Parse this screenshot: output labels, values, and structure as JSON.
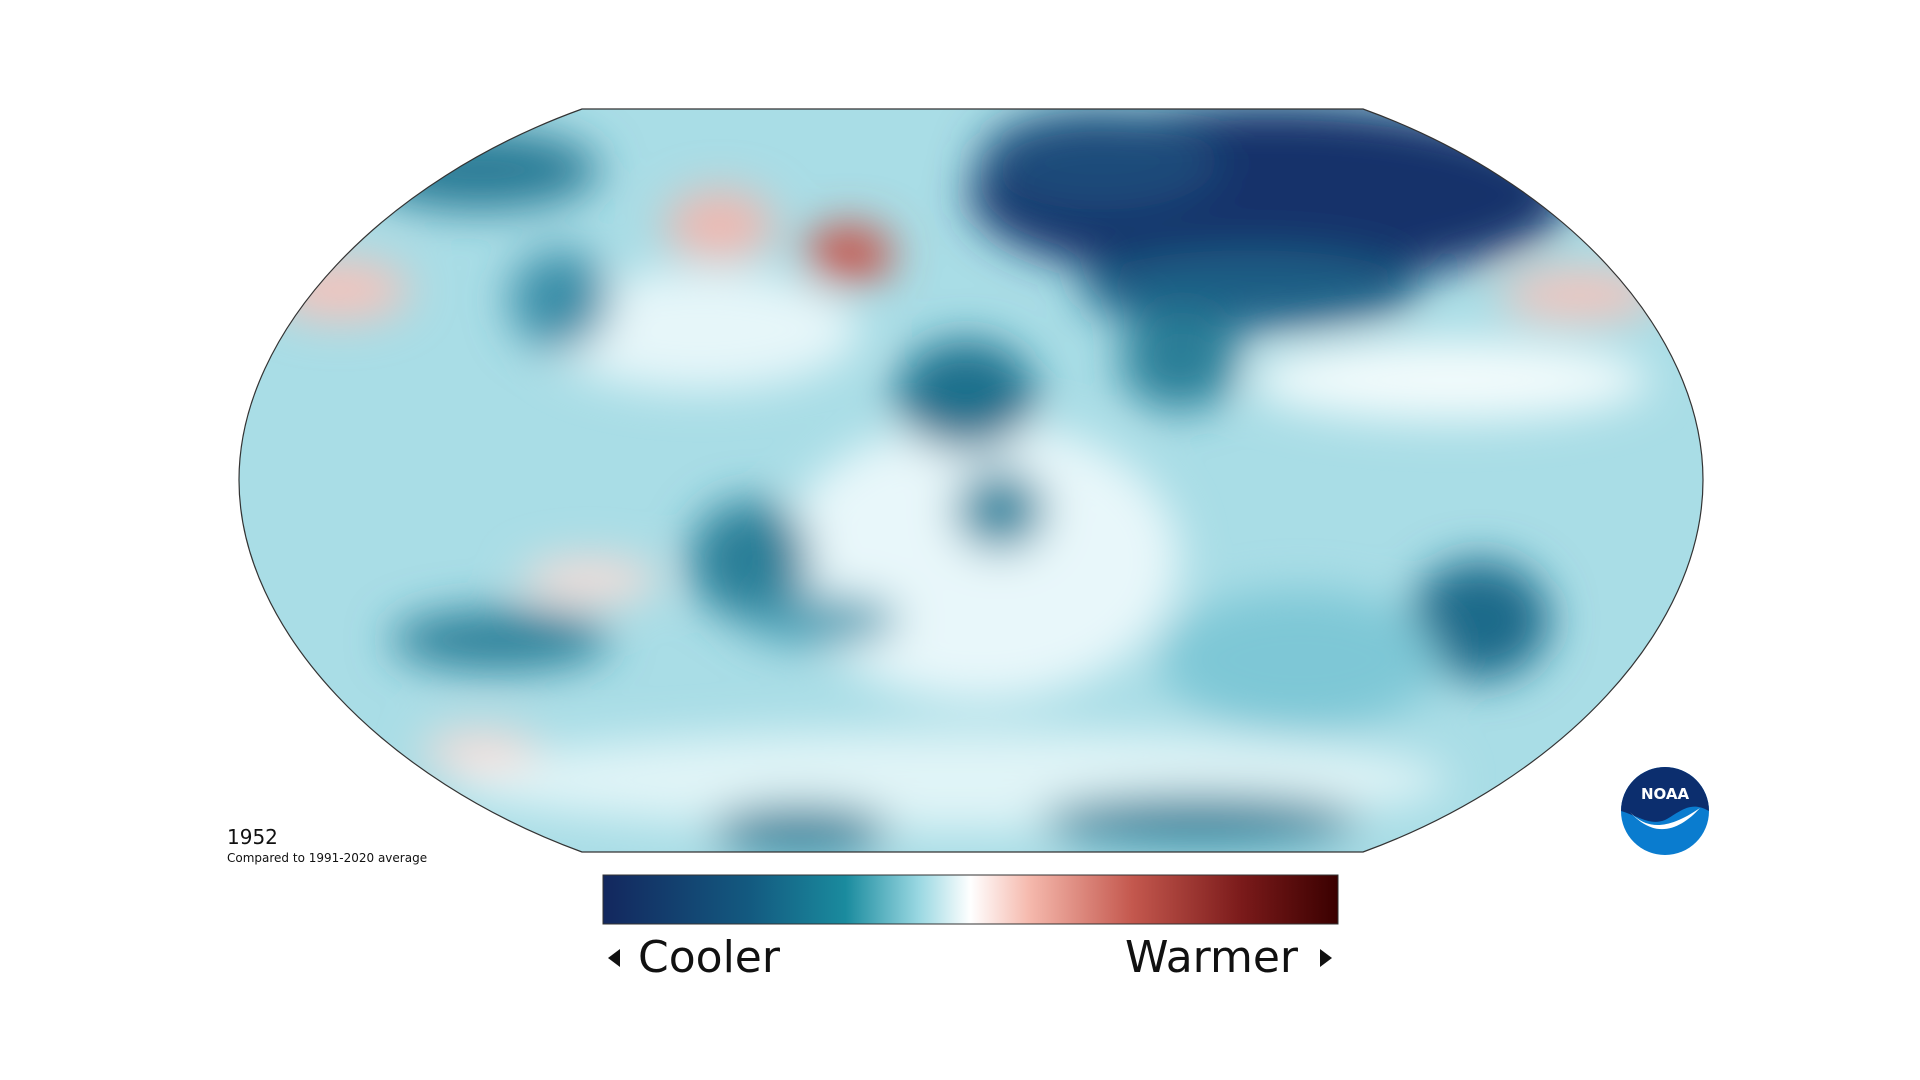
{
  "map": {
    "year": "1952",
    "caption": "Compared to 1991-2020 average"
  },
  "legend": {
    "low_label": "Cooler",
    "high_label": "Warmer"
  },
  "logo": {
    "text": "NOAA"
  }
}
